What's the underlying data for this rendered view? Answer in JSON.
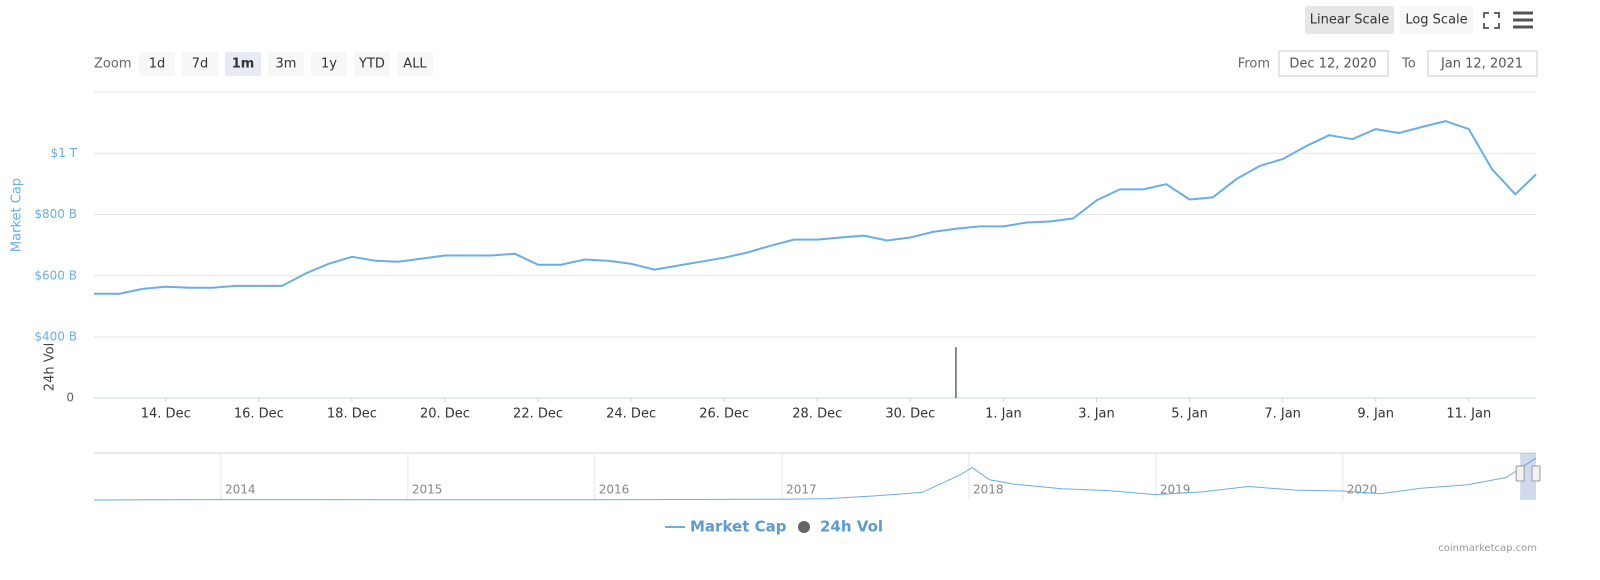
{
  "toolbar": {
    "zoom_label": "Zoom",
    "zoom_buttons": [
      "1d",
      "7d",
      "1m",
      "3m",
      "1y",
      "YTD",
      "ALL"
    ],
    "selected_zoom": 2,
    "scale_buttons": [
      "Linear Scale",
      "Log Scale"
    ],
    "selected_scale": 0,
    "from_label": "From",
    "from": "Dec 12, 2020",
    "to_label": "To",
    "to": "Jan 12, 2021"
  },
  "credit": "coinmarketcap.com",
  "chart_data": [
    {
      "type": "line",
      "ylabel": "Market Cap",
      "y2label": "24h Vol",
      "xlim": [
        "2020-12-12T11:00",
        "2021-01-12T10:40"
      ],
      "xticks": [
        {
          "value": "2020-12-14T00:00",
          "label": "14. Dec"
        },
        {
          "value": "2020-12-16T00:00",
          "label": "16. Dec"
        },
        {
          "value": "2020-12-18T00:00",
          "label": "18. Dec"
        },
        {
          "value": "2020-12-20T00:00",
          "label": "20. Dec"
        },
        {
          "value": "2020-12-22T00:00",
          "label": "22. Dec"
        },
        {
          "value": "2020-12-24T00:00",
          "label": "24. Dec"
        },
        {
          "value": "2020-12-26T00:00",
          "label": "26. Dec"
        },
        {
          "value": "2020-12-28T00:00",
          "label": "28. Dec"
        },
        {
          "value": "2020-12-30T00:00",
          "label": "30. Dec"
        },
        {
          "value": "2021-01-01T00:00",
          "label": "1. Jan"
        },
        {
          "value": "2021-01-03T00:00",
          "label": "3. Jan"
        },
        {
          "value": "2021-01-05T00:00",
          "label": "5. Jan"
        },
        {
          "value": "2021-01-07T00:00",
          "label": "7. Jan"
        },
        {
          "value": "2021-01-09T00:00",
          "label": "9. Jan"
        },
        {
          "value": "2021-01-11T00:00",
          "label": "11. Jan"
        }
      ],
      "ylim": [
        400,
        1200
      ],
      "yticks": [
        {
          "value": 400,
          "label": "$400 B"
        },
        {
          "value": 600,
          "label": "$600 B"
        },
        {
          "value": 800,
          "label": "$800 B"
        },
        {
          "value": 1000,
          "label": "$1 T"
        }
      ],
      "y2lim": [
        0,
        120
      ],
      "y2ticks": [
        0
      ],
      "grid": true,
      "series": [
        {
          "name": "Market Cap",
          "type": "line",
          "color": "#6aaee6",
          "x": [
            "2020-12-12T11:00",
            "2020-12-13T00:00",
            "2020-12-13T12:00",
            "2020-12-14T00:00",
            "2020-12-14T12:00",
            "2020-12-15T00:00",
            "2020-12-15T12:00",
            "2020-12-16T00:00",
            "2020-12-16T12:00",
            "2020-12-17T00:00",
            "2020-12-17T12:00",
            "2020-12-18T00:00",
            "2020-12-18T12:00",
            "2020-12-19T00:00",
            "2020-12-19T12:00",
            "2020-12-20T00:00",
            "2020-12-20T12:00",
            "2020-12-21T00:00",
            "2020-12-21T12:00",
            "2020-12-22T00:00",
            "2020-12-22T12:00",
            "2020-12-23T00:00",
            "2020-12-23T12:00",
            "2020-12-24T00:00",
            "2020-12-24T12:00",
            "2020-12-25T00:00",
            "2020-12-25T12:00",
            "2020-12-26T00:00",
            "2020-12-26T12:00",
            "2020-12-27T00:00",
            "2020-12-27T12:00",
            "2020-12-28T00:00",
            "2020-12-28T12:00",
            "2020-12-29T00:00",
            "2020-12-29T12:00",
            "2020-12-30T00:00",
            "2020-12-30T12:00",
            "2020-12-31T00:00",
            "2020-12-31T12:00",
            "2021-01-01T00:00",
            "2021-01-01T12:00",
            "2021-01-02T00:00",
            "2021-01-02T12:00",
            "2021-01-03T00:00",
            "2021-01-03T12:00",
            "2021-01-04T00:00",
            "2021-01-04T12:00",
            "2021-01-05T00:00",
            "2021-01-05T12:00",
            "2021-01-06T00:00",
            "2021-01-06T12:00",
            "2021-01-07T00:00",
            "2021-01-07T12:00",
            "2021-01-08T00:00",
            "2021-01-08T12:00",
            "2021-01-09T00:00",
            "2021-01-09T12:00",
            "2021-01-10T00:00",
            "2021-01-10T12:00",
            "2021-01-11T00:00",
            "2021-01-11T12:00",
            "2021-01-12T00:00",
            "2021-01-12T10:40"
          ],
          "values": [
            541,
            541,
            557,
            564,
            561,
            561,
            567,
            567,
            567,
            607,
            639,
            662,
            649,
            646,
            656,
            666,
            666,
            666,
            672,
            636,
            636,
            653,
            649,
            639,
            620,
            633,
            646,
            659,
            676,
            698,
            718,
            718,
            725,
            731,
            715,
            725,
            744,
            754,
            761,
            761,
            774,
            777,
            787,
            846,
            882,
            882,
            899,
            849,
            856,
            915,
            958,
            981,
            1023,
            1059,
            1046,
            1079,
            1066,
            1086,
            1105,
            1079,
            948,
            866,
            931
          ]
        },
        {
          "name": "24h Vol",
          "type": "column",
          "axis": "y2",
          "color": "#666666",
          "x": [
            "2020-12-30T23:30"
          ],
          "values": [
            100
          ]
        }
      ]
    },
    {
      "type": "line",
      "xlim": [
        "2013-04-28T00:00",
        "2021-01-12T10:40"
      ],
      "ylim": [
        0,
        1000
      ],
      "xticks": [
        {
          "value": "2014-01-01T00:00",
          "label": "2014"
        },
        {
          "value": "2015-01-01T00:00",
          "label": "2015"
        },
        {
          "value": "2016-01-01T00:00",
          "label": "2016"
        },
        {
          "value": "2017-01-01T00:00",
          "label": "2017"
        },
        {
          "value": "2018-01-01T00:00",
          "label": "2018"
        },
        {
          "value": "2019-01-01T00:00",
          "label": "2019"
        },
        {
          "value": "2020-01-01T00:00",
          "label": "2020"
        }
      ],
      "color": "#6aaee6",
      "x": [
        "2013-04-28T00:00",
        "2014-01-01T00:00",
        "2014-07-01T00:00",
        "2015-01-01T00:00",
        "2015-07-01T00:00",
        "2016-01-01T00:00",
        "2016-07-01T00:00",
        "2017-01-01T00:00",
        "2017-04-01T00:00",
        "2017-07-01T00:00",
        "2017-10-01T00:00",
        "2017-12-15T00:00",
        "2018-01-07T00:00",
        "2018-02-10T00:00",
        "2018-04-01T00:00",
        "2018-07-01T00:00",
        "2018-10-01T00:00",
        "2019-01-01T00:00",
        "2019-04-01T00:00",
        "2019-07-01T00:00",
        "2019-10-01T00:00",
        "2020-01-01T00:00",
        "2020-03-15T00:00",
        "2020-06-01T00:00",
        "2020-09-01T00:00",
        "2020-11-15T00:00",
        "2021-01-12T10:40"
      ],
      "values": [
        1,
        10,
        8,
        5,
        5,
        7,
        12,
        18,
        30,
        90,
        170,
        560,
        720,
        450,
        350,
        250,
        210,
        120,
        180,
        300,
        220,
        200,
        140,
        260,
        340,
        500,
        930
      ]
    }
  ]
}
